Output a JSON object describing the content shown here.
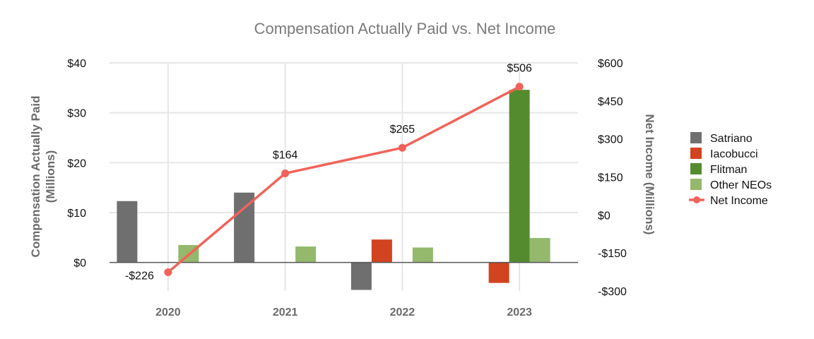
{
  "chart_data": {
    "type": "bar+line",
    "title": "Compensation Actually Paid vs. Net Income",
    "categories": [
      "2020",
      "2021",
      "2022",
      "2023"
    ],
    "y_left": {
      "label": "Compensation Actually Paid (Millions)",
      "label_lines": [
        "Compensation Actually Paid",
        "(Millions)"
      ],
      "range": [
        -5.71,
        40
      ],
      "ticks": [
        {
          "value": 40,
          "label": "$40"
        },
        {
          "value": 30,
          "label": "$30"
        },
        {
          "value": 20,
          "label": "$20"
        },
        {
          "value": 10,
          "label": "$10"
        },
        {
          "value": 0,
          "label": "$0"
        }
      ]
    },
    "y_right": {
      "label": "Net Income (Millions)",
      "range": [
        -300,
        600
      ],
      "ticks": [
        {
          "value": 600,
          "label": "$600"
        },
        {
          "value": 450,
          "label": "$450"
        },
        {
          "value": 300,
          "label": "$300"
        },
        {
          "value": 150,
          "label": "$150"
        },
        {
          "value": 0,
          "label": "$0"
        },
        {
          "value": -150,
          "label": "-$150"
        },
        {
          "value": -300,
          "label": "-$300"
        }
      ]
    },
    "bar_series": [
      {
        "name": "Satriano",
        "color": "#6f6f6f",
        "values": [
          12.3,
          14.0,
          -5.5,
          null
        ]
      },
      {
        "name": "Iacobucci",
        "color": "#d2431f",
        "values": [
          null,
          null,
          4.6,
          -4.1
        ]
      },
      {
        "name": "Flitman",
        "color": "#558b2f",
        "values": [
          null,
          null,
          null,
          34.6
        ]
      },
      {
        "name": "Other NEOs",
        "color": "#94b86c",
        "values": [
          3.5,
          3.2,
          3.0,
          4.9
        ]
      }
    ],
    "line_series": {
      "name": "Net Income",
      "color": "#f0635a",
      "values": [
        -226,
        164,
        265,
        506
      ],
      "labels": [
        "-$226",
        "$164",
        "$265",
        "$506"
      ]
    },
    "legend_position": "right",
    "grid": true
  }
}
